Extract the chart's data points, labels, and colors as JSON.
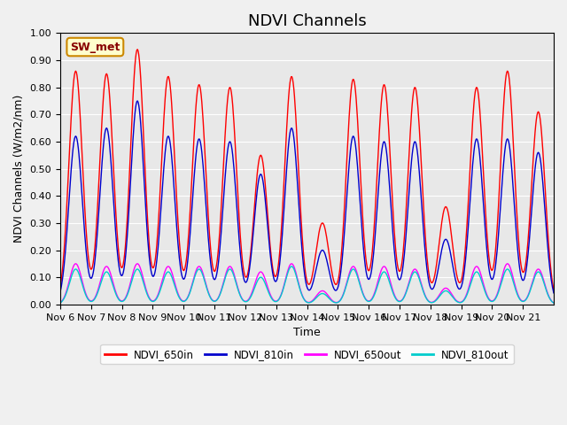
{
  "title": "NDVI Channels",
  "ylabel": "NDVI Channels (W/m2/nm)",
  "xlabel": "Time",
  "annotation": "SW_met",
  "ylim": [
    0.0,
    1.0
  ],
  "yticks": [
    0.0,
    0.1,
    0.2,
    0.3,
    0.4,
    0.5,
    0.6,
    0.7,
    0.8,
    0.9,
    1.0
  ],
  "xtick_labels": [
    "Nov 6",
    "Nov 7",
    "Nov 8",
    "Nov 9",
    "Nov 10",
    "Nov 11",
    "Nov 12",
    "Nov 13",
    "Nov 14",
    "Nov 15",
    "Nov 16",
    "Nov 17",
    "Nov 18",
    "Nov 19",
    "Nov 20",
    "Nov 21"
  ],
  "colors": {
    "NDVI_650in": "#ff0000",
    "NDVI_810in": "#0000cc",
    "NDVI_650out": "#ff00ff",
    "NDVI_810out": "#00cccc"
  },
  "legend_labels": [
    "NDVI_650in",
    "NDVI_810in",
    "NDVI_650out",
    "NDVI_810out"
  ],
  "bg_color": "#e8e8e8",
  "annotation_bg": "#ffffcc",
  "annotation_border": "#cc8800",
  "annotation_text_color": "#880000",
  "peak_650in": [
    0.86,
    0.85,
    0.94,
    0.84,
    0.81,
    0.8,
    0.55,
    0.84,
    0.3,
    0.83,
    0.81,
    0.8,
    0.36,
    0.8,
    0.86,
    0.71
  ],
  "peak_810in": [
    0.62,
    0.65,
    0.75,
    0.62,
    0.61,
    0.6,
    0.48,
    0.65,
    0.2,
    0.62,
    0.6,
    0.6,
    0.24,
    0.61,
    0.61,
    0.56
  ],
  "peak_650out": [
    0.15,
    0.14,
    0.15,
    0.14,
    0.14,
    0.14,
    0.12,
    0.15,
    0.05,
    0.14,
    0.14,
    0.13,
    0.06,
    0.14,
    0.15,
    0.13
  ],
  "peak_810out": [
    0.13,
    0.12,
    0.13,
    0.12,
    0.13,
    0.13,
    0.1,
    0.14,
    0.04,
    0.13,
    0.12,
    0.12,
    0.05,
    0.12,
    0.13,
    0.12
  ],
  "linewidth": 1.0,
  "grid": true,
  "grid_color": "#ffffff",
  "title_fontsize": 13,
  "label_fontsize": 9,
  "tick_fontsize": 8
}
